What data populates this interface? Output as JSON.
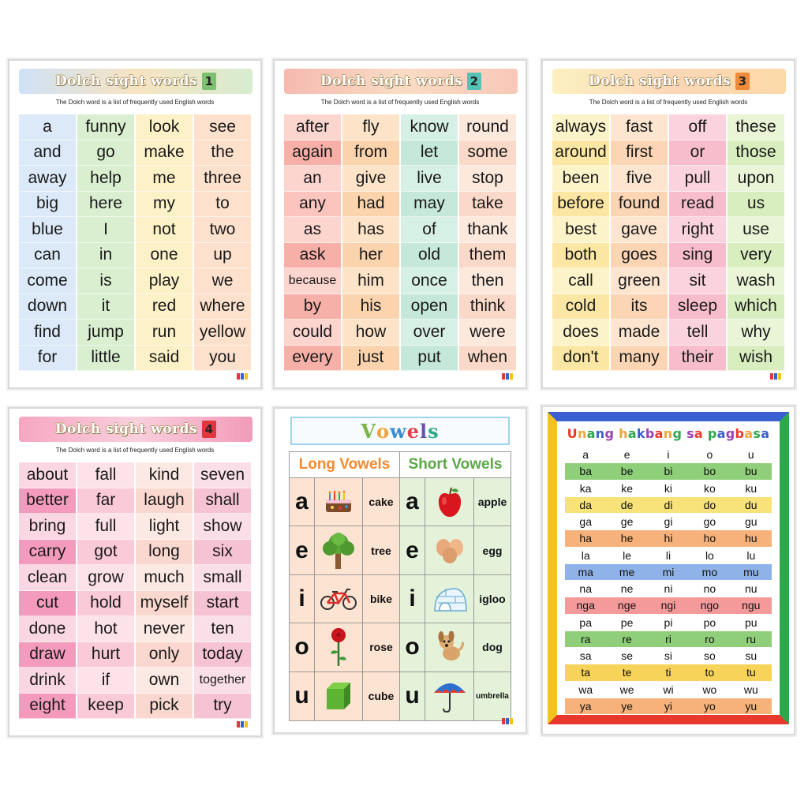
{
  "dolch_subtitle": "The Dolch word is a list of frequently used English words",
  "dolch_cards": [
    {
      "title": "Dolch sight words",
      "number": "1",
      "title_gradient": [
        "#cfe2f7",
        "#f7e3c2",
        "#d7ecd0"
      ],
      "badge_color": "#7cc16f",
      "columns": [
        [
          "a",
          "and",
          "away",
          "big",
          "blue",
          "can",
          "come",
          "down",
          "find",
          "for"
        ],
        [
          "funny",
          "go",
          "help",
          "here",
          "I",
          "in",
          "is",
          "it",
          "jump",
          "little"
        ],
        [
          "look",
          "make",
          "me",
          "my",
          "not",
          "one",
          "play",
          "red",
          "run",
          "said"
        ],
        [
          "see",
          "the",
          "three",
          "to",
          "two",
          "up",
          "we",
          "where",
          "yellow",
          "you"
        ]
      ],
      "column_colors": [
        [
          "#dbe9f8",
          "#dbe9f8",
          "#dbe9f8",
          "#dbe9f8",
          "#dbe9f8",
          "#dbe9f8",
          "#dbe9f8",
          "#dbe9f8",
          "#dbe9f8",
          "#dbe9f8"
        ],
        [
          "#d9efd0",
          "#d9efd0",
          "#d9efd0",
          "#d9efd0",
          "#d9efd0",
          "#d9efd0",
          "#d9efd0",
          "#d9efd0",
          "#d9efd0",
          "#d9efd0"
        ],
        [
          "#fdf1c7",
          "#fdf1c7",
          "#fdf1c7",
          "#fdf1c7",
          "#fdf1c7",
          "#fdf1c7",
          "#fdf1c7",
          "#fdf1c7",
          "#fdf1c7",
          "#fdf1c7"
        ],
        [
          "#fde1cd",
          "#fde1cd",
          "#fde1cd",
          "#fde1cd",
          "#fde1cd",
          "#fde1cd",
          "#fde1cd",
          "#fde1cd",
          "#fde1cd",
          "#fde1cd"
        ]
      ]
    },
    {
      "title": "Dolch sight words",
      "number": "2",
      "title_gradient": [
        "#f6b9b0",
        "#f9dcc4",
        "#f8c8b9"
      ],
      "badge_color": "#55c2b5",
      "columns": [
        [
          "after",
          "again",
          "an",
          "any",
          "as",
          "ask",
          "because",
          "by",
          "could",
          "every"
        ],
        [
          "fly",
          "from",
          "give",
          "had",
          "has",
          "her",
          "him",
          "his",
          "how",
          "just"
        ],
        [
          "know",
          "let",
          "live",
          "may",
          "of",
          "old",
          "once",
          "open",
          "over",
          "put"
        ],
        [
          "round",
          "some",
          "stop",
          "take",
          "thank",
          "them",
          "then",
          "think",
          "were",
          "when"
        ]
      ],
      "column_colors": [
        [
          "#fcd5cf",
          "#f6b0a8",
          "#fcd5cf",
          "#fbc4bd",
          "#fcd5cf",
          "#f6b0a8",
          "#fcd5cf",
          "#f6b0a8",
          "#fcd5cf",
          "#f6b0a8"
        ],
        [
          "#fde3c7",
          "#fbd3ad",
          "#fde3c7",
          "#fbd3ad",
          "#fde3c7",
          "#fbd3ad",
          "#fde3c7",
          "#fbd3ad",
          "#fde3c7",
          "#fbd3ad"
        ],
        [
          "#d7f0e6",
          "#c5e8da",
          "#d7f0e6",
          "#c5e8da",
          "#d7f0e6",
          "#c5e8da",
          "#d7f0e6",
          "#c5e8da",
          "#d7f0e6",
          "#c5e8da"
        ],
        [
          "#fde8dc",
          "#fbd9c8",
          "#fde8dc",
          "#fbd9c8",
          "#fde8dc",
          "#fbd9c8",
          "#fde8dc",
          "#fbd9c8",
          "#fde8dc",
          "#fbd9c8"
        ]
      ]
    },
    {
      "title": "Dolch sight words",
      "number": "3",
      "title_gradient": [
        "#fdf0c0",
        "#fbd7b8",
        "#fcd9a8"
      ],
      "badge_color": "#f08a3a",
      "columns": [
        [
          "always",
          "around",
          "been",
          "before",
          "best",
          "both",
          "call",
          "cold",
          "does",
          "don't"
        ],
        [
          "fast",
          "first",
          "five",
          "found",
          "gave",
          "goes",
          "green",
          "its",
          "made",
          "many"
        ],
        [
          "off",
          "or",
          "pull",
          "read",
          "right",
          "sing",
          "sit",
          "sleep",
          "tell",
          "their"
        ],
        [
          "these",
          "those",
          "upon",
          "us",
          "use",
          "very",
          "wash",
          "which",
          "why",
          "wish"
        ]
      ],
      "column_colors": [
        [
          "#fdf3c9",
          "#fbe7a3",
          "#fdf3c9",
          "#fbe7a3",
          "#fdf3c9",
          "#fbe7a3",
          "#fdf3c9",
          "#fbe7a3",
          "#fdf3c9",
          "#fbe7a3"
        ],
        [
          "#fde5cf",
          "#fcd6b4",
          "#fde5cf",
          "#fcd6b4",
          "#fde5cf",
          "#fcd6b4",
          "#fde5cf",
          "#fcd6b4",
          "#fde5cf",
          "#fcd6b4"
        ],
        [
          "#fbd3de",
          "#f8bdcc",
          "#fbd3de",
          "#f8bdcc",
          "#fbd3de",
          "#f8bdcc",
          "#fbd3de",
          "#f8bdcc",
          "#fbd3de",
          "#f8bdcc"
        ],
        [
          "#e9f5d6",
          "#d9eebe",
          "#e9f5d6",
          "#d9eebe",
          "#e9f5d6",
          "#d9eebe",
          "#e9f5d6",
          "#d9eebe",
          "#e9f5d6",
          "#d9eebe"
        ]
      ]
    },
    {
      "title": "Dolch sight words",
      "number": "4",
      "title_gradient": [
        "#f7a6c2",
        "#f9d0dd",
        "#f29bb9"
      ],
      "badge_color": "#e2363e",
      "columns": [
        [
          "about",
          "better",
          "bring",
          "carry",
          "clean",
          "cut",
          "done",
          "draw",
          "drink",
          "eight"
        ],
        [
          "fall",
          "far",
          "full",
          "got",
          "grow",
          "hold",
          "hot",
          "hurt",
          "if",
          "keep"
        ],
        [
          "kind",
          "laugh",
          "light",
          "long",
          "much",
          "myself",
          "never",
          "only",
          "own",
          "pick"
        ],
        [
          "seven",
          "shall",
          "show",
          "six",
          "small",
          "start",
          "ten",
          "today",
          "together",
          "try"
        ]
      ],
      "column_colors": [
        [
          "#fbd7e4",
          "#f49bbd",
          "#fbd7e4",
          "#f49bbd",
          "#fbd7e4",
          "#f49bbd",
          "#fbd7e4",
          "#f49bbd",
          "#fbd7e4",
          "#f49bbd"
        ],
        [
          "#fde2ea",
          "#fbcad9",
          "#fde2ea",
          "#fbcad9",
          "#fde2ea",
          "#fbcad9",
          "#fde2ea",
          "#fbcad9",
          "#fde2ea",
          "#fbcad9"
        ],
        [
          "#fde9e3",
          "#fbd8cf",
          "#fde9e3",
          "#fbd8cf",
          "#fde9e3",
          "#fbd8cf",
          "#fde9e3",
          "#fbd8cf",
          "#fde9e3",
          "#fbd8cf"
        ],
        [
          "#fbdfe8",
          "#f6c3d4",
          "#fbdfe8",
          "#f6c3d4",
          "#fbdfe8",
          "#f6c3d4",
          "#fbdfe8",
          "#f6c3d4",
          "#fbdfe8",
          "#f6c3d4"
        ]
      ]
    }
  ],
  "vowels_card": {
    "title": "Vowels",
    "title_letter_colors": [
      "#7ab648",
      "#f0a33a",
      "#3b8dd0",
      "#e0404a",
      "#6a4fb0",
      "#2eaa8a"
    ],
    "long_header": "Long Vowels",
    "short_header": "Short Vowels",
    "long_header_color": "#f28a2e",
    "short_header_color": "#5aa846",
    "long": [
      {
        "letter": "a",
        "word": "cake",
        "icon": "cake-icon"
      },
      {
        "letter": "e",
        "word": "tree",
        "icon": "tree-icon"
      },
      {
        "letter": "i",
        "word": "bike",
        "icon": "bike-icon"
      },
      {
        "letter": "o",
        "word": "rose",
        "icon": "rose-icon"
      },
      {
        "letter": "u",
        "word": "cube",
        "icon": "cube-icon"
      }
    ],
    "short": [
      {
        "letter": "a",
        "word": "apple",
        "icon": "apple-icon"
      },
      {
        "letter": "e",
        "word": "egg",
        "icon": "egg-icon"
      },
      {
        "letter": "i",
        "word": "igloo",
        "icon": "igloo-icon"
      },
      {
        "letter": "o",
        "word": "dog",
        "icon": "dog-icon"
      },
      {
        "letter": "u",
        "word": "umbrella",
        "icon": "umbrella-icon"
      }
    ]
  },
  "syllable_card": {
    "title": "Unang hakbang sa pagbasa",
    "title_colors": [
      "#e8392c",
      "#f0a33a",
      "#2ea84a",
      "#3a5fd0",
      "#9b3fb5"
    ],
    "rows": [
      {
        "cells": [
          "a",
          "e",
          "i",
          "o",
          "u"
        ],
        "color": "#ffffff"
      },
      {
        "cells": [
          "ba",
          "be",
          "bi",
          "bo",
          "bu"
        ],
        "color": "#8fcf7a"
      },
      {
        "cells": [
          "ka",
          "ke",
          "ki",
          "ko",
          "ku"
        ],
        "color": "#ffffff"
      },
      {
        "cells": [
          "da",
          "de",
          "di",
          "do",
          "du"
        ],
        "color": "#f8e37a"
      },
      {
        "cells": [
          "ga",
          "ge",
          "gi",
          "go",
          "gu"
        ],
        "color": "#ffffff"
      },
      {
        "cells": [
          "ha",
          "he",
          "hi",
          "ho",
          "hu"
        ],
        "color": "#f6b27a"
      },
      {
        "cells": [
          "la",
          "le",
          "li",
          "lo",
          "lu"
        ],
        "color": "#ffffff"
      },
      {
        "cells": [
          "ma",
          "me",
          "mi",
          "mo",
          "mu"
        ],
        "color": "#8fb3e8"
      },
      {
        "cells": [
          "na",
          "ne",
          "ni",
          "no",
          "nu"
        ],
        "color": "#ffffff"
      },
      {
        "cells": [
          "nga",
          "nge",
          "ngi",
          "ngo",
          "ngu"
        ],
        "color": "#f59a9a"
      },
      {
        "cells": [
          "pa",
          "pe",
          "pi",
          "po",
          "pu"
        ],
        "color": "#ffffff"
      },
      {
        "cells": [
          "ra",
          "re",
          "ri",
          "ro",
          "ru"
        ],
        "color": "#8fcf7a"
      },
      {
        "cells": [
          "sa",
          "se",
          "si",
          "so",
          "su"
        ],
        "color": "#ffffff"
      },
      {
        "cells": [
          "ta",
          "te",
          "ti",
          "to",
          "tu"
        ],
        "color": "#f8d35a"
      },
      {
        "cells": [
          "wa",
          "we",
          "wi",
          "wo",
          "wu"
        ],
        "color": "#ffffff"
      },
      {
        "cells": [
          "ya",
          "ye",
          "yi",
          "yo",
          "yu"
        ],
        "color": "#f6b27a"
      }
    ]
  }
}
